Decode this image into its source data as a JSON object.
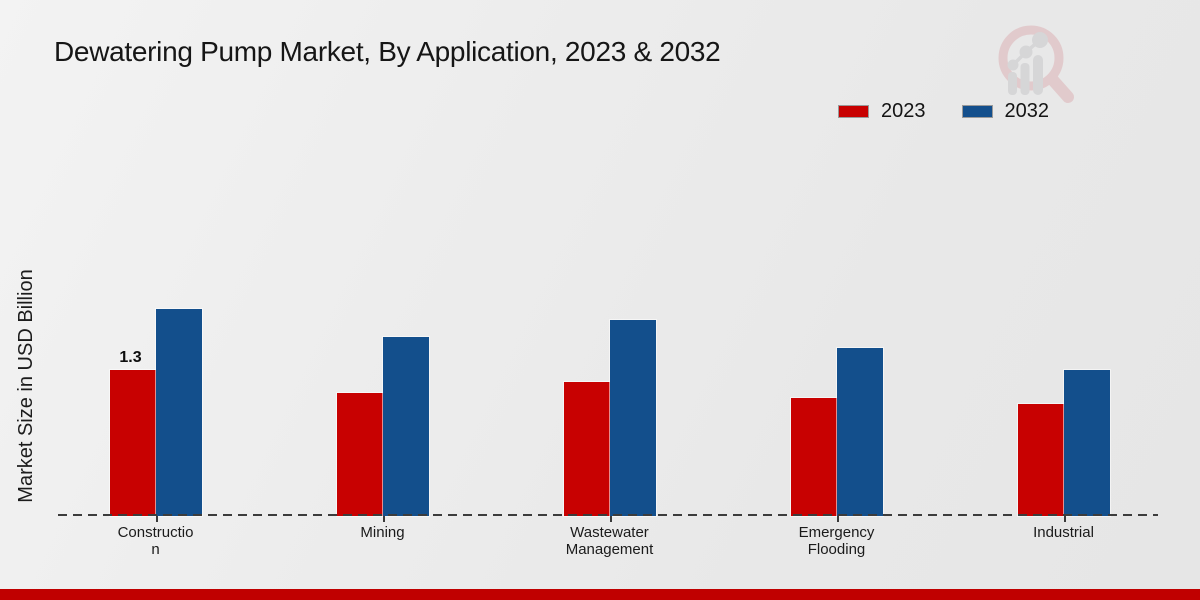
{
  "page": {
    "title": "Dewatering Pump Market, By Application, 2023 & 2032"
  },
  "axis": {
    "y_label": "Market Size in USD Billion"
  },
  "legend": [
    {
      "label": "2023",
      "color": "#c80101"
    },
    {
      "label": "2032",
      "color": "#134f8c"
    }
  ],
  "icons": {
    "watermark": "magnifier-bar-chart-logo-icon"
  },
  "colors": {
    "series_2023": "#c80101",
    "series_2032": "#134f8c",
    "bottom_bar": "#c00000",
    "baseline": "#3c3c3c",
    "background": "#ebebeb"
  },
  "chart_data": {
    "type": "bar",
    "title": "Dewatering Pump Market, By Application, 2023 & 2032",
    "xlabel": "",
    "ylabel": "Market Size in USD Billion",
    "unit": "USD Billion",
    "categories": [
      "Construction",
      "Mining",
      "Wastewater Management",
      "Emergency Flooding",
      "Industrial"
    ],
    "category_label_lines": [
      [
        "Constructio",
        "n"
      ],
      [
        "Mining"
      ],
      [
        "Wastewater",
        "Management"
      ],
      [
        "Emergency",
        "Flooding"
      ],
      [
        "Industrial"
      ]
    ],
    "series": [
      {
        "name": "2023",
        "color": "#c80101",
        "values": [
          1.3,
          1.1,
          1.2,
          1.05,
          1.0
        ]
      },
      {
        "name": "2032",
        "color": "#134f8c",
        "values": [
          1.85,
          1.6,
          1.75,
          1.5,
          1.3
        ]
      }
    ],
    "data_labels": [
      {
        "category": "Construction",
        "series": "2023",
        "text": "1.3"
      }
    ],
    "ylim": [
      0,
      2.0
    ],
    "grid": false,
    "baseline_style": "dashed",
    "legend_position": "top-right",
    "y_ticks_visible": false
  }
}
